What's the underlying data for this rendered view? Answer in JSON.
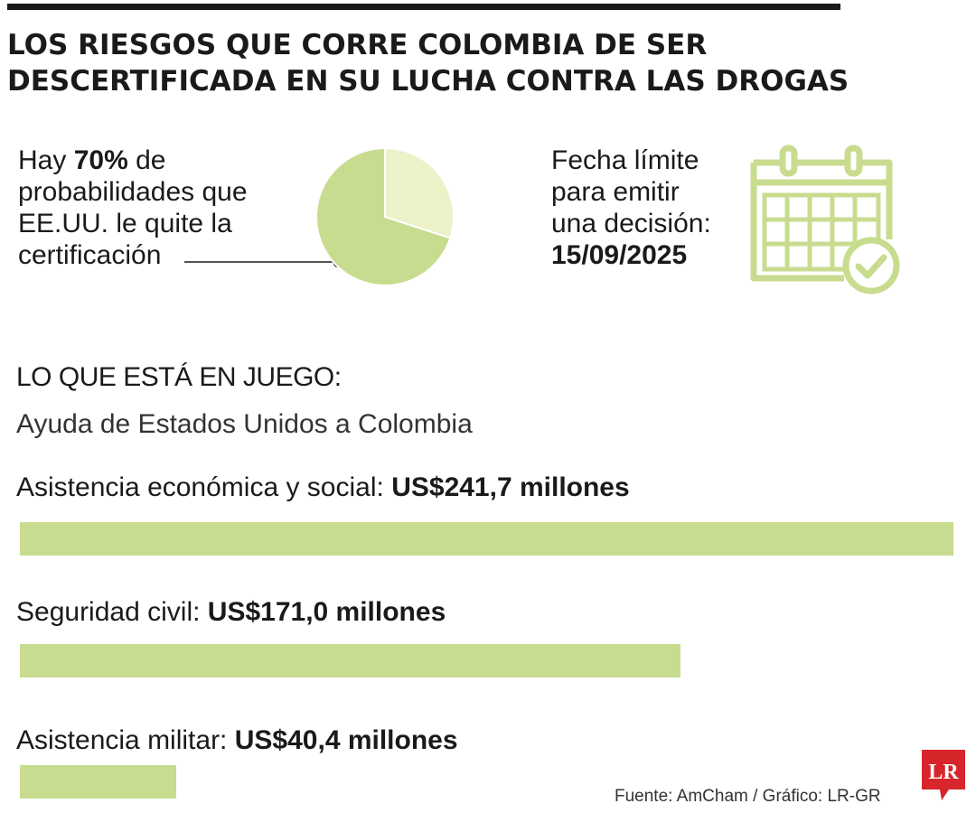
{
  "title": {
    "line1": "LOS RIESGOS QUE CORRE COLOMBIA DE SER",
    "line2": "DESCERTIFICADA EN SU LUCHA CONTRA LAS DROGAS"
  },
  "probability": {
    "prefix": "Hay",
    "value_text": "70%",
    "line1_suffix": "de",
    "line2": "probabilidades que",
    "line3": "EE.UU. le quite la",
    "line4": "certificación"
  },
  "deadline": {
    "line1": "Fecha límite",
    "line2": "para emitir",
    "line3": "una decisión:",
    "date": "15/09/2025"
  },
  "section": {
    "heading": "LO QUE ESTÁ EN JUEGO:",
    "subheading": "Ayuda de Estados Unidos a Colombia"
  },
  "chart_data": [
    {
      "type": "pie",
      "values": [
        70,
        30
      ],
      "colors": [
        "#c8dc8f",
        "#ecf1c8"
      ]
    },
    {
      "type": "bar",
      "orientation": "horizontal",
      "unit": "US$ millones",
      "categories": [
        "Asistencia económica y social:",
        "Seguridad civil:",
        "Asistencia militar:"
      ],
      "value_labels": [
        "US$241,7 millones",
        "US$171,0 millones",
        "US$40,4 millones"
      ],
      "values": [
        241.7,
        171.0,
        40.4
      ],
      "bar_color": "#c8dc8f"
    }
  ],
  "footer": {
    "source": "Fuente: AmCham / Gráfico: LR-GR",
    "logo_text": "LR"
  },
  "colors": {
    "accent_green": "#c8dc8f",
    "light_green": "#ecf1c8",
    "logo_red": "#d7262b",
    "text": "#1a1a1a"
  }
}
